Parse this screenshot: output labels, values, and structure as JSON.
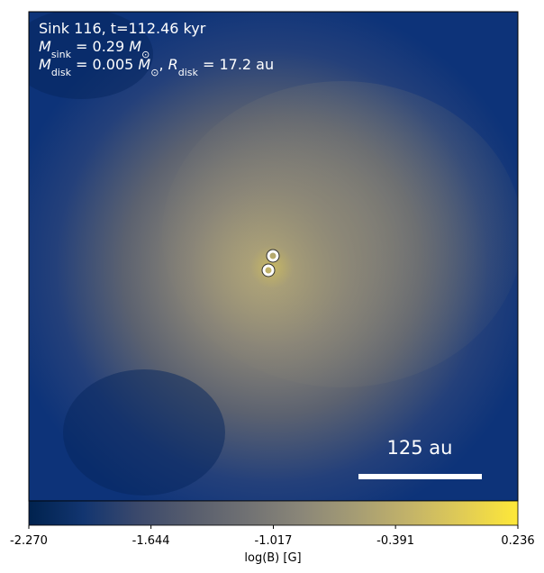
{
  "chart_data": {
    "type": "image",
    "annotation_lines": [
      [
        {
          "text": "Sink 116, t=112.46 kyr",
          "style": "plain"
        }
      ],
      [
        {
          "text": "M",
          "style": "italic"
        },
        {
          "text": "sink",
          "style": "sub"
        },
        {
          "text": " = 0.29 ",
          "style": "plain"
        },
        {
          "text": "M",
          "style": "italic"
        },
        {
          "text": "⊙",
          "style": "sub"
        }
      ],
      [
        {
          "text": "M",
          "style": "italic"
        },
        {
          "text": "disk",
          "style": "sub"
        },
        {
          "text": " = 0.005 ",
          "style": "plain"
        },
        {
          "text": "M",
          "style": "italic"
        },
        {
          "text": "⊙",
          "style": "sub"
        },
        {
          "text": ", ",
          "style": "plain"
        },
        {
          "text": "R",
          "style": "italic"
        },
        {
          "text": "disk",
          "style": "sub"
        },
        {
          "text": " = 17.2 au",
          "style": "plain"
        }
      ]
    ],
    "scale_bar_label": "125 au",
    "colorbar": {
      "label": "log(B) [G]",
      "xlim": [
        -2.27,
        0.236
      ],
      "xticks": [
        {
          "value": -2.27,
          "label": "-2.270"
        },
        -1.644,
        -1.017,
        -0.391,
        0.236
      ],
      "colormap": [
        "#00224e",
        "#123570",
        "#3b496c",
        "#575d6d",
        "#707173",
        "#8a8678",
        "#a59c74",
        "#c3b369",
        "#e1cc55",
        "#fee838"
      ]
    }
  }
}
